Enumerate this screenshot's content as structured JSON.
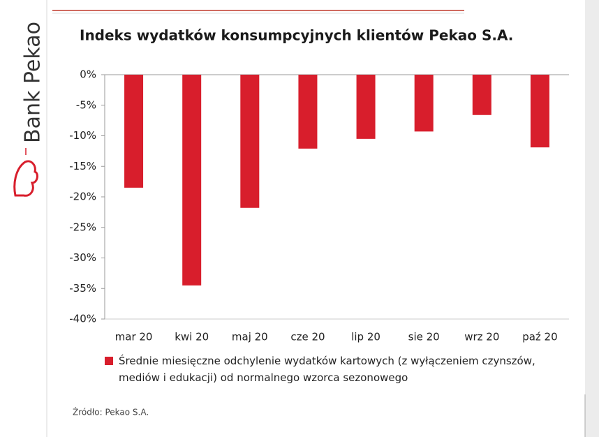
{
  "brand": "Bank Pekao",
  "chart_data": {
    "type": "bar",
    "title": "Indeks wydatków konsumpcyjnych klientów Pekao S.A.",
    "categories": [
      "mar 20",
      "kwi 20",
      "maj 20",
      "cze 20",
      "lip 20",
      "sie 20",
      "wrz 20",
      "paź 20"
    ],
    "series": [
      {
        "name": "Średnie miesięczne odchylenie wydatków kartowych (z wyłączeniem czynszów, mediów i edukacji) od normalnego wzorca sezonowego",
        "color": "#d81e2c",
        "values": [
          -18.5,
          -34.5,
          -21.8,
          -12.1,
          -10.5,
          -9.3,
          -6.6,
          -11.9
        ]
      }
    ],
    "ylim": [
      -40,
      0
    ],
    "yticks": [
      {
        "value": 0,
        "label": "0%"
      },
      {
        "value": -5,
        "label": "-5%"
      },
      {
        "value": -10,
        "label": "-10%"
      },
      {
        "value": -15,
        "label": "-15%"
      },
      {
        "value": -20,
        "label": "-20%"
      },
      {
        "value": -25,
        "label": "-25%"
      },
      {
        "value": -30,
        "label": "-30%"
      },
      {
        "value": -35,
        "label": "-35%"
      },
      {
        "value": -40,
        "label": "-40%"
      }
    ],
    "source": "Źródło: Pekao S.A."
  }
}
